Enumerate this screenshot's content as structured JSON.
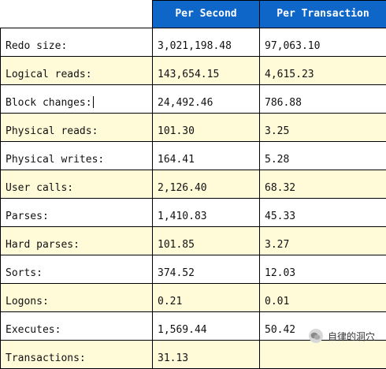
{
  "columns": {
    "per_second": "Per Second",
    "per_transaction": "Per Transaction"
  },
  "rows": [
    {
      "label": "Redo size:",
      "per_second": "3,021,198.48",
      "per_transaction": "97,063.10"
    },
    {
      "label": "Logical reads:",
      "per_second": "143,654.15",
      "per_transaction": "4,615.23"
    },
    {
      "label": "Block changes:",
      "per_second": "24,492.46",
      "per_transaction": "786.88"
    },
    {
      "label": "Physical reads:",
      "per_second": "101.30",
      "per_transaction": "3.25"
    },
    {
      "label": "Physical writes:",
      "per_second": "164.41",
      "per_transaction": "5.28"
    },
    {
      "label": "User calls:",
      "per_second": "2,126.40",
      "per_transaction": "68.32"
    },
    {
      "label": "Parses:",
      "per_second": "1,410.83",
      "per_transaction": "45.33"
    },
    {
      "label": "Hard parses:",
      "per_second": "101.85",
      "per_transaction": "3.27"
    },
    {
      "label": "Sorts:",
      "per_second": "374.52",
      "per_transaction": "12.03"
    },
    {
      "label": "Logons:",
      "per_second": "0.21",
      "per_transaction": "0.01"
    },
    {
      "label": "Executes:",
      "per_second": "1,569.44",
      "per_transaction": "50.42"
    },
    {
      "label": "Transactions:",
      "per_second": "31.13",
      "per_transaction": ""
    }
  ],
  "watermark": {
    "text": "自律的洞穴",
    "icon": "wechat-bubble-icon"
  },
  "colors": {
    "header_bg": "#0f66c9",
    "header_text": "#ffffff",
    "shaded_row_bg": "#fffbd9"
  }
}
